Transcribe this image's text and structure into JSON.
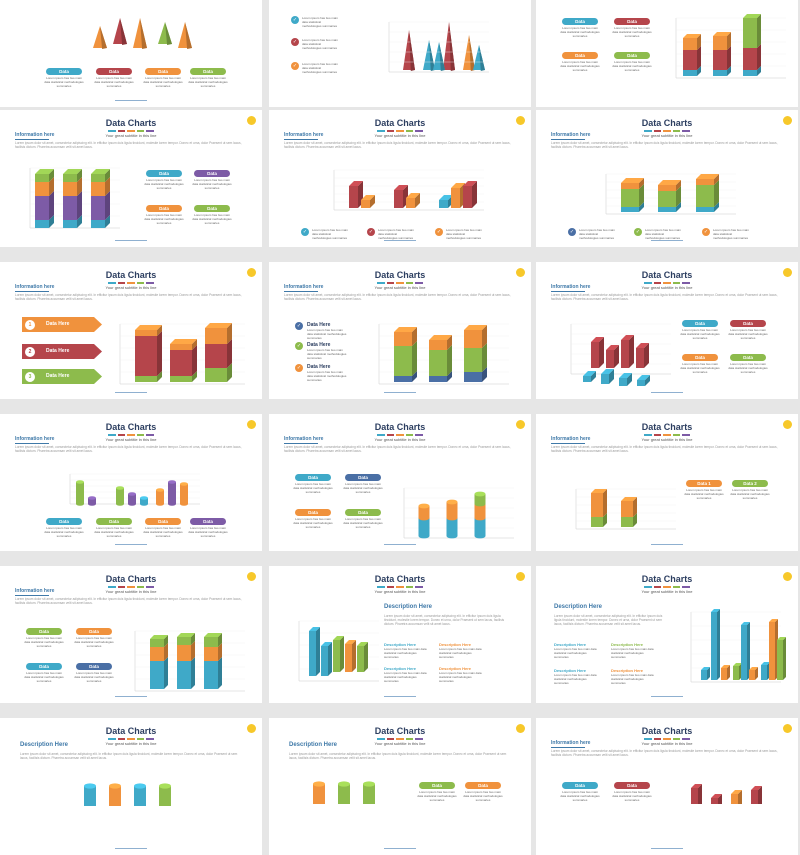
{
  "slide_title": "Data Charts",
  "slide_subtitle": "Your great subtitle in this line",
  "info_heading": "Information here",
  "desc_heading": "Description Here",
  "lorem": "Lorem ipsum dolor sit amet, consectetur adipiscing elit. In efficitur ipsum duis ligula tincidunt, molestie lorem tempor. Donec et urna, dolor Praesent ut sem lacus, facilisis dictum. Pharetra accumsan velit sit amet lacus.",
  "item_text": "Lorem ipsum has two main data statistical methodologies summaries",
  "data_label": "Data",
  "data_here": "Data Here",
  "description_here": "Description Here",
  "data1": "Data 1",
  "data2": "Data 2",
  "colors": {
    "blue": "#3fa9c8",
    "red": "#b5454b",
    "orange": "#f0923d",
    "green": "#8dbb4c",
    "purple": "#7d5ba6",
    "navy": "#4a6fa5",
    "title": "#2c3e60",
    "accent": "#f7c82a"
  },
  "color_bar": [
    "#3fa9c8",
    "#b5454b",
    "#f0923d",
    "#8dbb4c",
    "#7d5ba6"
  ],
  "arrow_numbers": [
    "1",
    "2",
    "3"
  ]
}
